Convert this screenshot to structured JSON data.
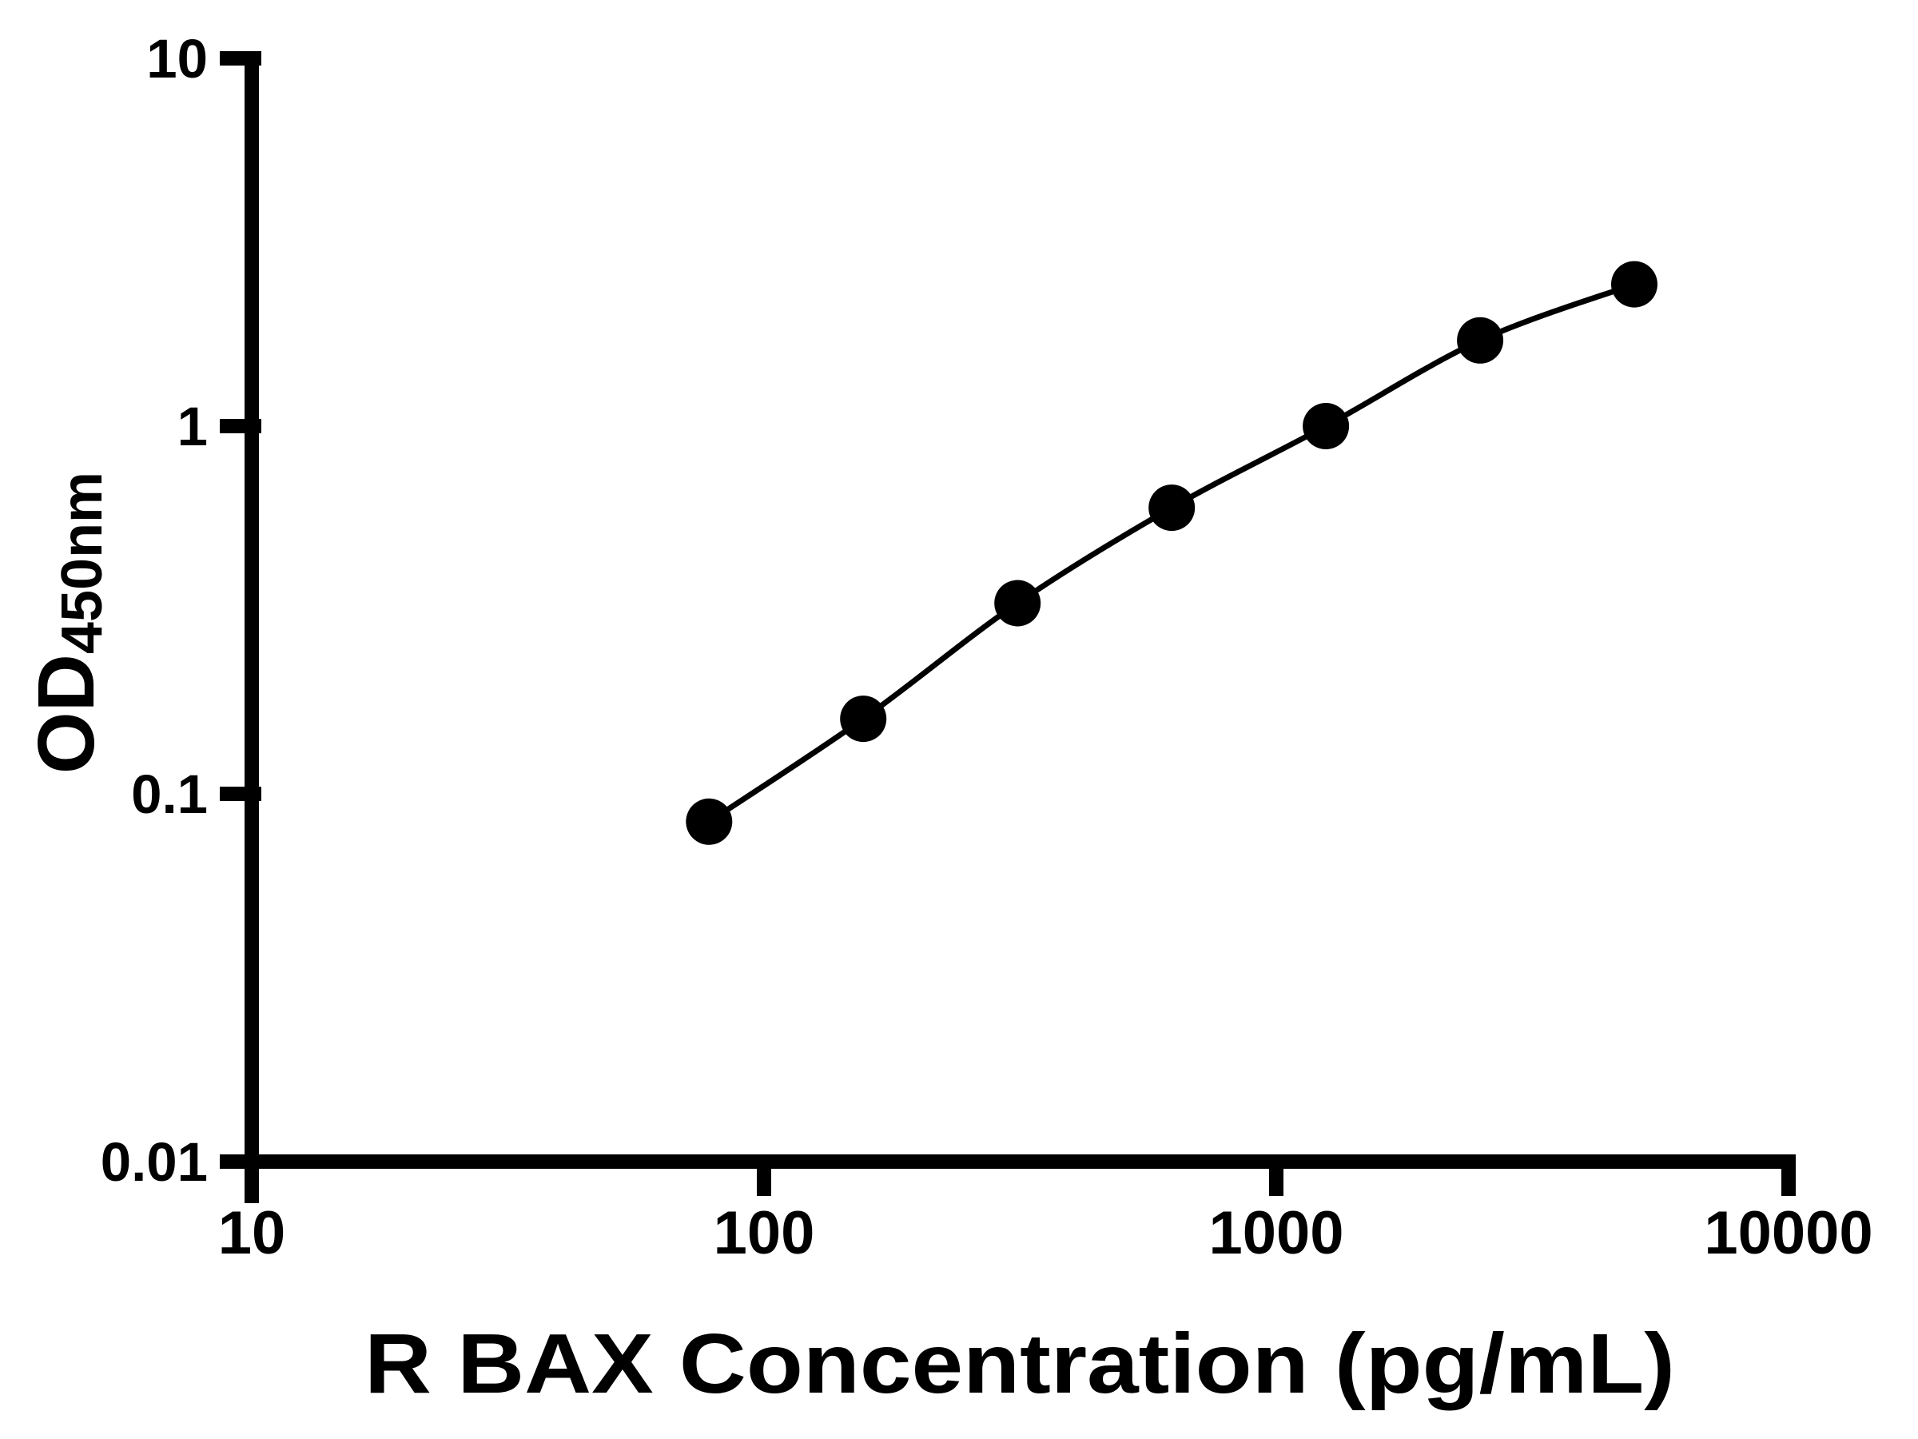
{
  "figure": {
    "background_color": "#ffffff",
    "ink_color": "#000000"
  },
  "chart_data": {
    "type": "line",
    "title": "",
    "xlabel": "R BAX Concentration (pg/mL)",
    "ylabel_main": "OD",
    "ylabel_sub": "450nm",
    "x_scale": "log",
    "y_scale": "log",
    "xlim": [
      10,
      10000
    ],
    "ylim": [
      0.01,
      10
    ],
    "grid": "off",
    "legend": "none",
    "x_ticks": [
      {
        "value": 10,
        "label": "10"
      },
      {
        "value": 100,
        "label": "100"
      },
      {
        "value": 1000,
        "label": "1000"
      },
      {
        "value": 10000,
        "label": "10000"
      }
    ],
    "y_ticks": [
      {
        "value": 10,
        "label": "10"
      },
      {
        "value": 1,
        "label": "1"
      },
      {
        "value": 0.1,
        "label": "0.1"
      },
      {
        "value": 0.01,
        "label": "0.01"
      }
    ],
    "series": [
      {
        "marker": "filled-circle",
        "color": "#000000",
        "points": [
          {
            "x": 78.125,
            "y": 0.084
          },
          {
            "x": 156.25,
            "y": 0.16
          },
          {
            "x": 312.5,
            "y": 0.33
          },
          {
            "x": 625,
            "y": 0.6
          },
          {
            "x": 1250,
            "y": 1.0
          },
          {
            "x": 2500,
            "y": 1.71
          },
          {
            "x": 5000,
            "y": 2.43
          }
        ]
      }
    ]
  }
}
